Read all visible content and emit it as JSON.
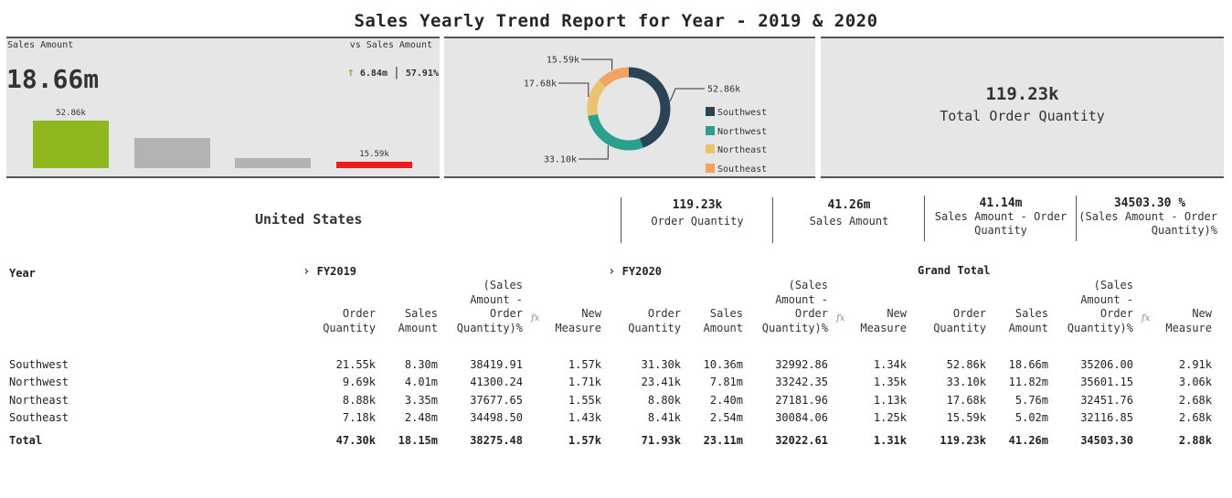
{
  "title": "Sales Yearly Trend Report for Year - 2019 & 2020",
  "sales_card": {
    "title": "Sales Amount",
    "value": "18.66m",
    "vs_label": "vs Sales Amount",
    "delta_arrow": "↑",
    "delta_amount": "6.84m",
    "delta_sep": "|",
    "delta_pct": "57.91%",
    "bars": [
      {
        "value": 52.86,
        "color": "#8fb81f",
        "label": "52.86k"
      },
      {
        "value": 33.1,
        "color": "#b3b3b3",
        "label": ""
      },
      {
        "value": 17.68,
        "color": "#b3b3b3",
        "label": ""
      },
      {
        "value": 15.59,
        "color": "#ee1c1c",
        "label": "15.59k"
      }
    ]
  },
  "chart_data": {
    "type": "pie",
    "donut": true,
    "categories": [
      "Southwest",
      "Northwest",
      "Northeast",
      "Southeast"
    ],
    "values": [
      52.86,
      33.1,
      17.68,
      15.59
    ],
    "data_labels": [
      "52.86k",
      "33.10k",
      "17.68k",
      "15.59k"
    ],
    "colors": [
      "#2a4455",
      "#2aa08f",
      "#e9c46a",
      "#f4a261"
    ],
    "legend_position": "right"
  },
  "total_card": {
    "value": "119.23k",
    "label": "Total Order Quantity"
  },
  "country": "United States",
  "kpis": [
    {
      "value": "119.23k",
      "label": "Order Quantity"
    },
    {
      "value": "41.26m",
      "label": "Sales Amount"
    },
    {
      "value": "41.14m",
      "label": "Sales Amount - Order Quantity"
    },
    {
      "value": "34503.30 %",
      "label": "(Sales Amount - Order Quantity)%"
    }
  ],
  "matrix": {
    "row_header": "Year",
    "groups": [
      {
        "chevron": "›",
        "label": "FY2019"
      },
      {
        "chevron": "›",
        "label": "FY2020"
      },
      {
        "chevron": "",
        "label": "Grand Total"
      }
    ],
    "columns": [
      "Order Quantity",
      "Sales Amount",
      "(Sales Amount - Order Quantity)%",
      "New Measure"
    ],
    "fx_symbol": "fx",
    "rows": [
      {
        "label": "Southwest",
        "cells": [
          "21.55k",
          "8.30m",
          "38419.91",
          "1.57k",
          "31.30k",
          "10.36m",
          "32992.86",
          "1.34k",
          "52.86k",
          "18.66m",
          "35206.00",
          "2.91k"
        ]
      },
      {
        "label": "Northwest",
        "cells": [
          "9.69k",
          "4.01m",
          "41300.24",
          "1.71k",
          "23.41k",
          "7.81m",
          "33242.35",
          "1.35k",
          "33.10k",
          "11.82m",
          "35601.15",
          "3.06k"
        ]
      },
      {
        "label": "Northeast",
        "cells": [
          "8.88k",
          "3.35m",
          "37677.65",
          "1.55k",
          "8.80k",
          "2.40m",
          "27181.96",
          "1.13k",
          "17.68k",
          "5.76m",
          "32451.76",
          "2.68k"
        ]
      },
      {
        "label": "Southeast",
        "cells": [
          "7.18k",
          "2.48m",
          "34498.50",
          "1.43k",
          "8.41k",
          "2.54m",
          "30084.06",
          "1.25k",
          "15.59k",
          "5.02m",
          "32116.85",
          "2.68k"
        ]
      }
    ],
    "total": {
      "label": "Total",
      "cells": [
        "47.30k",
        "18.15m",
        "38275.48",
        "1.57k",
        "71.93k",
        "23.11m",
        "32022.61",
        "1.31k",
        "119.23k",
        "41.26m",
        "34503.30",
        "2.88k"
      ]
    }
  }
}
